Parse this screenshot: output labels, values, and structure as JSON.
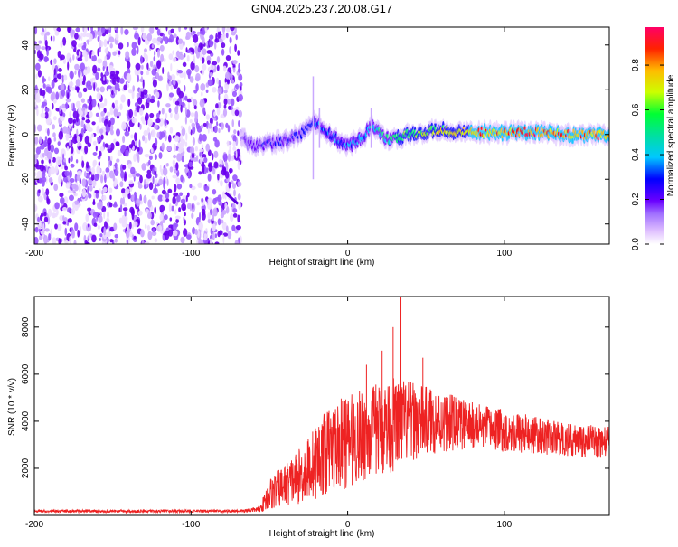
{
  "title": "GN04.2025.237.20.08.G17",
  "colors": {
    "snr_line": "#ee2222",
    "axis": "#000000"
  },
  "chart_data": [
    {
      "type": "heatmap",
      "name": "spectrogram",
      "xlabel": "Height of straight line (km)",
      "ylabel": "Frequency (Hz)",
      "xlim": [
        -200,
        167
      ],
      "ylim": [
        -49,
        48
      ],
      "x_ticks": [
        -200,
        -100,
        0,
        100
      ],
      "y_ticks": [
        -40,
        -20,
        0,
        20,
        40
      ],
      "colorbar": {
        "label": "Normalized spectral amplitude",
        "range": [
          0,
          0.97
        ],
        "ticks": [
          0.0,
          0.2,
          0.4,
          0.6,
          0.8
        ],
        "tick_labels": [
          "0.0",
          "0.2",
          "0.4",
          "0.6",
          "0.8"
        ],
        "colormap": [
          "#ffffff",
          "#e4c8ff",
          "#a070ff",
          "#6a00ff",
          "#0000ff",
          "#00c8ff",
          "#00ff66",
          "#ccff00",
          "#ffbb00",
          "#ff0000",
          "#ff0066"
        ]
      },
      "noise_region": {
        "x_range": [
          -200,
          -68
        ],
        "amplitude_range": [
          0.05,
          0.15
        ]
      },
      "signal_track": [
        {
          "x": -68,
          "f": -2,
          "a": 0.25
        },
        {
          "x": -60,
          "f": -5,
          "a": 0.3
        },
        {
          "x": -50,
          "f": -4,
          "a": 0.35
        },
        {
          "x": -40,
          "f": -3,
          "a": 0.35
        },
        {
          "x": -30,
          "f": 0,
          "a": 0.4
        },
        {
          "x": -20,
          "f": 6,
          "a": 0.45
        },
        {
          "x": -15,
          "f": 2,
          "a": 0.45
        },
        {
          "x": -5,
          "f": -3,
          "a": 0.45
        },
        {
          "x": 0,
          "f": -5,
          "a": 0.5
        },
        {
          "x": 10,
          "f": -1,
          "a": 0.5
        },
        {
          "x": 15,
          "f": 4,
          "a": 0.55
        },
        {
          "x": 25,
          "f": -2,
          "a": 0.6
        },
        {
          "x": 40,
          "f": 0,
          "a": 0.65
        },
        {
          "x": 60,
          "f": 2,
          "a": 0.75
        },
        {
          "x": 80,
          "f": 1,
          "a": 0.8
        },
        {
          "x": 100,
          "f": 1,
          "a": 0.85
        },
        {
          "x": 120,
          "f": 1,
          "a": 0.9
        },
        {
          "x": 140,
          "f": 0,
          "a": 0.85
        },
        {
          "x": 167,
          "f": 0,
          "a": 0.8
        }
      ],
      "secondary_line": [
        {
          "x": -78,
          "f": -26
        },
        {
          "x": -70,
          "f": -31
        }
      ]
    },
    {
      "type": "line",
      "name": "snr",
      "xlabel": "Height of straight line (km)",
      "ylabel": "SNR (10 * v/v)",
      "xlim": [
        -200,
        167
      ],
      "ylim": [
        0,
        9300
      ],
      "x_ticks": [
        -200,
        -100,
        0,
        100
      ],
      "y_ticks": [
        2000,
        4000,
        6000,
        8000
      ],
      "envelope": [
        {
          "x": -200,
          "mean": 180,
          "amp": 60
        },
        {
          "x": -70,
          "mean": 180,
          "amp": 60
        },
        {
          "x": -56,
          "mean": 260,
          "amp": 120
        },
        {
          "x": -50,
          "mean": 900,
          "amp": 700
        },
        {
          "x": -40,
          "mean": 1300,
          "amp": 900
        },
        {
          "x": -30,
          "mean": 1700,
          "amp": 1200
        },
        {
          "x": -20,
          "mean": 2300,
          "amp": 1600
        },
        {
          "x": -10,
          "mean": 2900,
          "amp": 1900
        },
        {
          "x": 0,
          "mean": 3100,
          "amp": 2000
        },
        {
          "x": 10,
          "mean": 3400,
          "amp": 2000
        },
        {
          "x": 20,
          "mean": 3700,
          "amp": 2000
        },
        {
          "x": 30,
          "mean": 3900,
          "amp": 2100
        },
        {
          "x": 40,
          "mean": 4000,
          "amp": 1700
        },
        {
          "x": 60,
          "mean": 4000,
          "amp": 1300
        },
        {
          "x": 80,
          "mean": 3800,
          "amp": 1000
        },
        {
          "x": 100,
          "mean": 3600,
          "amp": 900
        },
        {
          "x": 120,
          "mean": 3400,
          "amp": 800
        },
        {
          "x": 140,
          "mean": 3200,
          "amp": 700
        },
        {
          "x": 167,
          "mean": 3100,
          "amp": 700
        }
      ],
      "peaks": [
        {
          "x": 34,
          "y": 9300
        },
        {
          "x": 29,
          "y": 8000
        },
        {
          "x": 22,
          "y": 7000
        },
        {
          "x": 12,
          "y": 6400
        },
        {
          "x": 48,
          "y": 6700
        }
      ]
    }
  ]
}
